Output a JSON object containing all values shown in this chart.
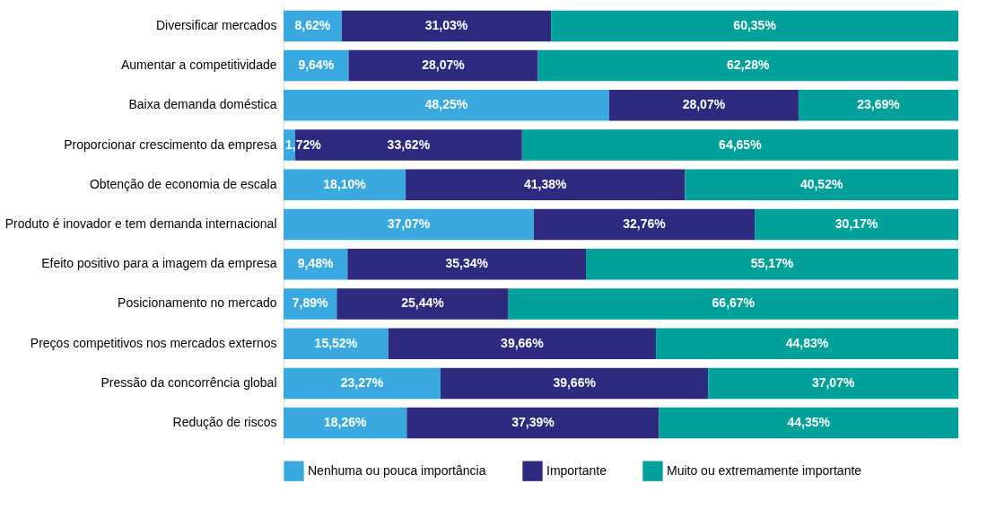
{
  "chart_data": {
    "type": "bar",
    "orientation": "horizontal",
    "stacked": true,
    "legend": "bottom",
    "tick_labels": "y",
    "xlim": [
      0,
      100
    ],
    "categories": [
      "Diversificar mercados",
      "Aumentar a competitividade",
      "Baixa demanda doméstica",
      "Proporcionar crescimento da empresa",
      "Obtenção de economia de escala",
      "Produto é inovador e tem demanda internacional",
      "Efeito positivo para a imagem da empresa",
      "Posicionamento no mercado",
      "Preços competitivos nos mercados externos",
      "Pressão da concorrência global",
      "Redução de riscos"
    ],
    "series": [
      {
        "name": "Nenhuma ou pouca importância",
        "color": "#3aa9df",
        "values": [
          8.62,
          9.64,
          48.25,
          1.72,
          18.1,
          37.07,
          9.48,
          7.89,
          15.52,
          23.27,
          18.26
        ],
        "value_labels": [
          "8,62%",
          "9,64%",
          "48,25%",
          "1,72%",
          "18,10%",
          "37,07%",
          "9,48%",
          "7,89%",
          "15,52%",
          "23,27%",
          "18,26%"
        ]
      },
      {
        "name": "Importante",
        "color": "#2e2a7f",
        "values": [
          31.03,
          28.07,
          28.07,
          33.62,
          41.38,
          32.76,
          35.34,
          25.44,
          39.66,
          39.66,
          37.39
        ],
        "value_labels": [
          "31,03%",
          "28,07%",
          "28,07%",
          "33,62%",
          "41,38%",
          "32,76%",
          "35,34%",
          "25,44%",
          "39,66%",
          "39,66%",
          "37,39%"
        ]
      },
      {
        "name": "Muito ou extremamente importante",
        "color": "#00a19a",
        "values": [
          60.35,
          62.28,
          23.69,
          64.65,
          40.52,
          30.17,
          55.17,
          66.67,
          44.83,
          37.07,
          44.35
        ],
        "value_labels": [
          "60,35%",
          "62,28%",
          "23,69%",
          "64,65%",
          "40,52%",
          "30,17%",
          "55,17%",
          "66,67%",
          "44,83%",
          "37,07%",
          "44,35%"
        ]
      }
    ]
  }
}
